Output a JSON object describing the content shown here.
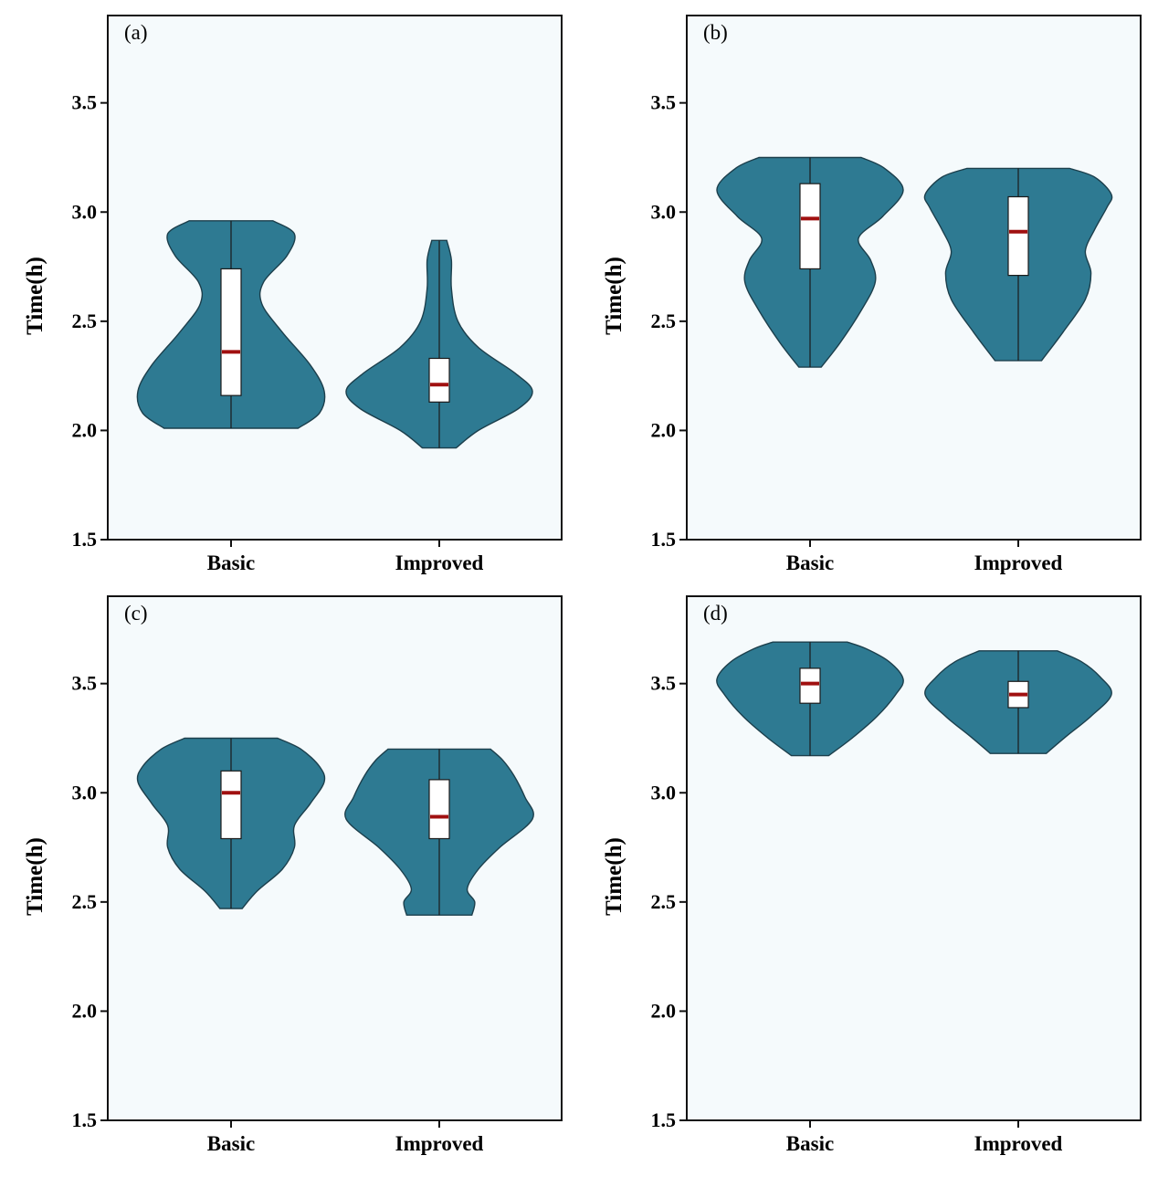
{
  "chart_data": [
    {
      "type": "violin",
      "panel_label": "(a)",
      "ylabel": "Time(h)",
      "ylim": [
        1.5,
        3.9
      ],
      "yticks": [
        "1.5",
        "2.0",
        "2.5",
        "3.0",
        "3.5"
      ],
      "categories": [
        "Basic",
        "Improved"
      ],
      "fill_color": "#2e7a92",
      "median_color": "#a01010",
      "groups": [
        {
          "name": "Basic",
          "min": 2.01,
          "max": 2.96,
          "q1": 2.16,
          "median": 2.36,
          "q3": 2.74,
          "density": [
            [
              2.01,
              0.72
            ],
            [
              2.08,
              0.95
            ],
            [
              2.18,
              1.0
            ],
            [
              2.3,
              0.85
            ],
            [
              2.45,
              0.55
            ],
            [
              2.58,
              0.33
            ],
            [
              2.68,
              0.35
            ],
            [
              2.8,
              0.6
            ],
            [
              2.9,
              0.68
            ],
            [
              2.96,
              0.45
            ]
          ]
        },
        {
          "name": "Improved",
          "min": 1.92,
          "max": 2.87,
          "q1": 2.13,
          "median": 2.21,
          "q3": 2.33,
          "density": [
            [
              1.92,
              0.18
            ],
            [
              2.0,
              0.42
            ],
            [
              2.1,
              0.85
            ],
            [
              2.18,
              1.0
            ],
            [
              2.26,
              0.82
            ],
            [
              2.38,
              0.42
            ],
            [
              2.5,
              0.2
            ],
            [
              2.65,
              0.13
            ],
            [
              2.78,
              0.13
            ],
            [
              2.87,
              0.08
            ]
          ]
        }
      ]
    },
    {
      "type": "violin",
      "panel_label": "(b)",
      "ylabel": "Time(h)",
      "ylim": [
        1.5,
        3.9
      ],
      "yticks": [
        "1.5",
        "2.0",
        "2.5",
        "3.0",
        "3.5"
      ],
      "categories": [
        "Basic",
        "Improved"
      ],
      "fill_color": "#2e7a92",
      "median_color": "#a01010",
      "groups": [
        {
          "name": "Basic",
          "min": 2.29,
          "max": 3.25,
          "q1": 2.74,
          "median": 2.97,
          "q3": 3.13,
          "density": [
            [
              2.29,
              0.12
            ],
            [
              2.4,
              0.32
            ],
            [
              2.55,
              0.55
            ],
            [
              2.68,
              0.7
            ],
            [
              2.78,
              0.65
            ],
            [
              2.88,
              0.52
            ],
            [
              2.98,
              0.78
            ],
            [
              3.1,
              1.0
            ],
            [
              3.2,
              0.8
            ],
            [
              3.25,
              0.55
            ]
          ]
        },
        {
          "name": "Improved",
          "min": 2.32,
          "max": 3.2,
          "q1": 2.71,
          "median": 2.91,
          "q3": 3.07,
          "density": [
            [
              2.32,
              0.25
            ],
            [
              2.45,
              0.48
            ],
            [
              2.6,
              0.72
            ],
            [
              2.72,
              0.78
            ],
            [
              2.82,
              0.72
            ],
            [
              2.92,
              0.82
            ],
            [
              3.02,
              0.95
            ],
            [
              3.08,
              1.0
            ],
            [
              3.16,
              0.82
            ],
            [
              3.2,
              0.55
            ]
          ]
        }
      ]
    },
    {
      "type": "violin",
      "panel_label": "(c)",
      "ylabel": "Time(h)",
      "ylim": [
        1.5,
        3.9
      ],
      "yticks": [
        "1.5",
        "2.0",
        "2.5",
        "3.0",
        "3.5"
      ],
      "categories": [
        "Basic",
        "Improved"
      ],
      "fill_color": "#2e7a92",
      "median_color": "#a01010",
      "groups": [
        {
          "name": "Basic",
          "min": 2.47,
          "max": 3.25,
          "q1": 2.79,
          "median": 3.0,
          "q3": 3.1,
          "density": [
            [
              2.47,
              0.12
            ],
            [
              2.55,
              0.28
            ],
            [
              2.65,
              0.55
            ],
            [
              2.75,
              0.68
            ],
            [
              2.85,
              0.68
            ],
            [
              2.95,
              0.85
            ],
            [
              3.05,
              1.0
            ],
            [
              3.12,
              0.95
            ],
            [
              3.2,
              0.75
            ],
            [
              3.25,
              0.5
            ]
          ]
        },
        {
          "name": "Improved",
          "min": 2.44,
          "max": 3.2,
          "q1": 2.79,
          "median": 2.89,
          "q3": 3.06,
          "density": [
            [
              2.44,
              0.35
            ],
            [
              2.5,
              0.38
            ],
            [
              2.56,
              0.3
            ],
            [
              2.65,
              0.42
            ],
            [
              2.75,
              0.65
            ],
            [
              2.88,
              1.0
            ],
            [
              2.98,
              0.92
            ],
            [
              3.08,
              0.8
            ],
            [
              3.15,
              0.68
            ],
            [
              3.2,
              0.55
            ]
          ]
        }
      ]
    },
    {
      "type": "violin",
      "panel_label": "(d)",
      "ylabel": "Time(h)",
      "ylim": [
        1.5,
        3.9
      ],
      "yticks": [
        "1.5",
        "2.0",
        "2.5",
        "3.0",
        "3.5"
      ],
      "categories": [
        "Basic",
        "Improved"
      ],
      "fill_color": "#2e7a92",
      "median_color": "#a01010",
      "groups": [
        {
          "name": "Basic",
          "min": 3.17,
          "max": 3.69,
          "q1": 3.41,
          "median": 3.5,
          "q3": 3.57,
          "density": [
            [
              3.17,
              0.2
            ],
            [
              3.25,
              0.45
            ],
            [
              3.35,
              0.72
            ],
            [
              3.45,
              0.92
            ],
            [
              3.52,
              1.0
            ],
            [
              3.6,
              0.85
            ],
            [
              3.66,
              0.6
            ],
            [
              3.69,
              0.4
            ]
          ]
        },
        {
          "name": "Improved",
          "min": 3.18,
          "max": 3.65,
          "q1": 3.39,
          "median": 3.45,
          "q3": 3.51,
          "density": [
            [
              3.18,
              0.3
            ],
            [
              3.26,
              0.52
            ],
            [
              3.35,
              0.78
            ],
            [
              3.45,
              1.0
            ],
            [
              3.53,
              0.88
            ],
            [
              3.6,
              0.68
            ],
            [
              3.65,
              0.42
            ]
          ]
        }
      ]
    }
  ]
}
